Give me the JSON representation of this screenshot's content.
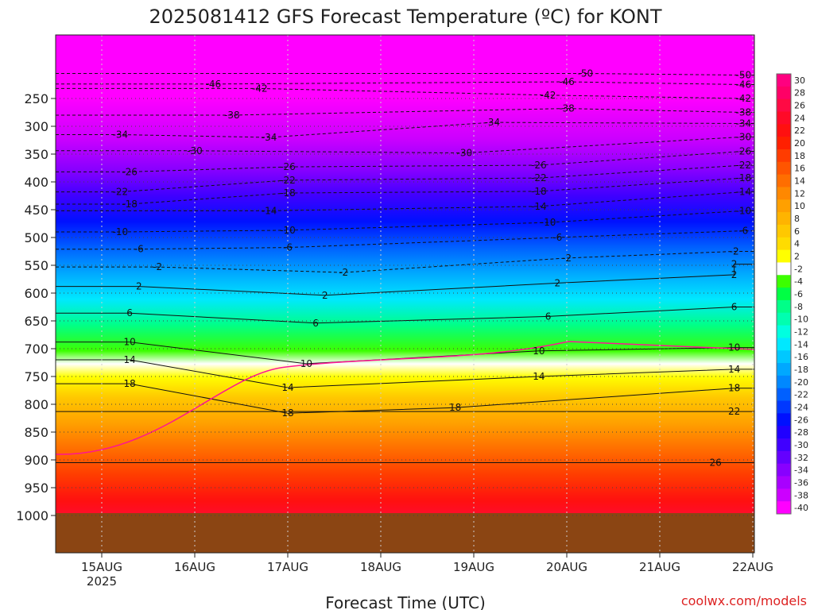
{
  "chart_data": {
    "type": "heatmap",
    "title": "2025081412 GFS Forecast Temperature (ºC) for KONT",
    "xlabel": "Forecast Time (UTC)",
    "ylabel": "",
    "credit": "coolwx.com/models",
    "x_ticks": [
      "15AUG",
      "16AUG",
      "17AUG",
      "18AUG",
      "19AUG",
      "20AUG",
      "21AUG",
      "22AUG"
    ],
    "x_year": "2025",
    "y_ticks": [
      250,
      300,
      350,
      400,
      450,
      500,
      550,
      600,
      650,
      700,
      750,
      800,
      850,
      900,
      950,
      1000
    ],
    "colorbar_labels": [
      30,
      28,
      26,
      24,
      22,
      20,
      18,
      16,
      14,
      12,
      10,
      8,
      6,
      4,
      2,
      -2,
      -4,
      -6,
      -8,
      -10,
      -12,
      -14,
      -16,
      -18,
      -20,
      -22,
      -24,
      -26,
      -28,
      -30,
      -32,
      -34,
      -36,
      -38,
      -40
    ],
    "colorbar_colors": [
      "#ff0080",
      "#ff0066",
      "#ff0a44",
      "#ff0a28",
      "#ff1010",
      "#ff2000",
      "#ff3c00",
      "#ff5500",
      "#ff6e00",
      "#ff8800",
      "#ffa000",
      "#ffb400",
      "#ffc800",
      "#ffdc00",
      "#ffff00",
      "#ffffff",
      "#3cff00",
      "#00ff44",
      "#00ff88",
      "#00ffb0",
      "#00ffe0",
      "#00e8ff",
      "#00c8ff",
      "#00a8ff",
      "#0088ff",
      "#0060ff",
      "#0038ff",
      "#0010ff",
      "#2000ff",
      "#4000ff",
      "#6400ff",
      "#8800ff",
      "#a800ff",
      "#cc00ff",
      "#ff00ff"
    ],
    "ground_color": "#8b4513",
    "contour_labels": [
      {
        "label": "-50",
        "x": 5.2,
        "p": 205
      },
      {
        "label": "-50",
        "x": 6.9,
        "p": 208
      },
      {
        "label": "-46",
        "x": 1.2,
        "p": 224
      },
      {
        "label": "-46",
        "x": 5.0,
        "p": 220
      },
      {
        "label": "-46",
        "x": 6.9,
        "p": 225
      },
      {
        "label": "-42",
        "x": 1.7,
        "p": 232
      },
      {
        "label": "-42",
        "x": 4.8,
        "p": 244
      },
      {
        "label": "-42",
        "x": 6.9,
        "p": 250
      },
      {
        "label": "-38",
        "x": 1.4,
        "p": 280
      },
      {
        "label": "-38",
        "x": 5.0,
        "p": 268
      },
      {
        "label": "-38",
        "x": 6.9,
        "p": 275
      },
      {
        "label": "-34",
        "x": 0.2,
        "p": 315
      },
      {
        "label": "-34",
        "x": 1.8,
        "p": 320
      },
      {
        "label": "-34",
        "x": 4.2,
        "p": 293
      },
      {
        "label": "-34",
        "x": 6.9,
        "p": 295
      },
      {
        "label": "-30",
        "x": 1.0,
        "p": 344
      },
      {
        "label": "-30",
        "x": 3.9,
        "p": 348
      },
      {
        "label": "-30",
        "x": 6.9,
        "p": 319
      },
      {
        "label": "-26",
        "x": 0.3,
        "p": 382
      },
      {
        "label": "-26",
        "x": 2.0,
        "p": 373
      },
      {
        "label": "-26",
        "x": 4.7,
        "p": 370
      },
      {
        "label": "-26",
        "x": 6.9,
        "p": 345
      },
      {
        "label": "-22",
        "x": 0.2,
        "p": 418
      },
      {
        "label": "-22",
        "x": 2.0,
        "p": 397
      },
      {
        "label": "-22",
        "x": 4.7,
        "p": 393
      },
      {
        "label": "-22",
        "x": 6.9,
        "p": 370
      },
      {
        "label": "-18",
        "x": 0.3,
        "p": 440
      },
      {
        "label": "-18",
        "x": 2.0,
        "p": 420
      },
      {
        "label": "-18",
        "x": 4.7,
        "p": 417
      },
      {
        "label": "-18",
        "x": 6.9,
        "p": 393
      },
      {
        "label": "-14",
        "x": 1.8,
        "p": 452
      },
      {
        "label": "-14",
        "x": 4.7,
        "p": 444
      },
      {
        "label": "-14",
        "x": 6.9,
        "p": 418
      },
      {
        "label": "-10",
        "x": 0.2,
        "p": 490
      },
      {
        "label": "-10",
        "x": 2.0,
        "p": 487
      },
      {
        "label": "-10",
        "x": 4.8,
        "p": 473
      },
      {
        "label": "-10",
        "x": 6.9,
        "p": 452
      },
      {
        "label": "-6",
        "x": 0.4,
        "p": 521
      },
      {
        "label": "-6",
        "x": 2.0,
        "p": 518
      },
      {
        "label": "-6",
        "x": 4.9,
        "p": 500
      },
      {
        "label": "-6",
        "x": 6.9,
        "p": 488
      },
      {
        "label": "-2",
        "x": 0.6,
        "p": 553
      },
      {
        "label": "-2",
        "x": 2.6,
        "p": 563
      },
      {
        "label": "-2",
        "x": 5.0,
        "p": 537
      },
      {
        "label": "-2",
        "x": 6.8,
        "p": 525
      },
      {
        "label": "2",
        "x": 0.4,
        "p": 588
      },
      {
        "label": "2",
        "x": 2.4,
        "p": 604
      },
      {
        "label": "2",
        "x": 4.9,
        "p": 582
      },
      {
        "label": "2",
        "x": 6.8,
        "p": 567
      },
      {
        "label": "6",
        "x": 0.3,
        "p": 636
      },
      {
        "label": "6",
        "x": 2.3,
        "p": 654
      },
      {
        "label": "6",
        "x": 4.8,
        "p": 642
      },
      {
        "label": "6",
        "x": 6.8,
        "p": 625
      },
      {
        "label": "10",
        "x": 0.3,
        "p": 688
      },
      {
        "label": "10",
        "x": 2.2,
        "p": 727
      },
      {
        "label": "10",
        "x": 4.7,
        "p": 704
      },
      {
        "label": "10",
        "x": 6.8,
        "p": 698
      },
      {
        "label": "14",
        "x": 0.3,
        "p": 720
      },
      {
        "label": "14",
        "x": 2.0,
        "p": 770
      },
      {
        "label": "14",
        "x": 4.7,
        "p": 750
      },
      {
        "label": "14",
        "x": 6.8,
        "p": 737
      },
      {
        "label": "18",
        "x": 0.3,
        "p": 763
      },
      {
        "label": "18",
        "x": 2.0,
        "p": 816
      },
      {
        "label": "18",
        "x": 3.8,
        "p": 806
      },
      {
        "label": "18",
        "x": 6.8,
        "p": 771
      },
      {
        "label": "22",
        "x": 6.8,
        "p": 813
      },
      {
        "label": "26",
        "x": 6.6,
        "p": 905
      },
      {
        "label": "2",
        "x": 6.8,
        "p": 548
      }
    ]
  }
}
